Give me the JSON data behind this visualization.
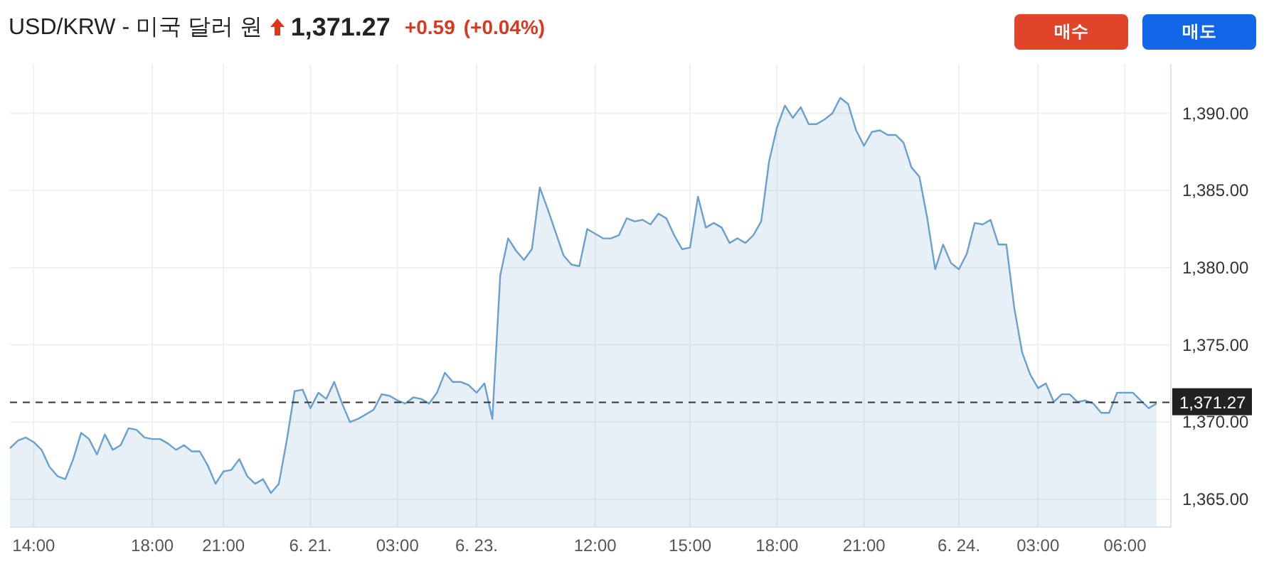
{
  "chart_data": {
    "type": "area",
    "title": "USD/KRW - 미국 달러 원",
    "annotations": [
      "1,371.27",
      "+0.59",
      "(+0.04%)",
      "매수",
      "매도"
    ],
    "categories": [
      null,
      null,
      null,
      "14:00",
      null,
      null,
      null,
      null,
      null,
      null,
      null,
      null,
      null,
      null,
      null,
      null,
      null,
      null,
      "18:00",
      null,
      null,
      null,
      null,
      null,
      null,
      null,
      null,
      "21:00",
      null,
      null,
      null,
      null,
      null,
      null,
      null,
      null,
      null,
      null,
      "6. 21.",
      null,
      null,
      null,
      null,
      null,
      null,
      null,
      null,
      null,
      null,
      "03:00",
      null,
      null,
      null,
      null,
      null,
      null,
      null,
      null,
      null,
      "6. 23.",
      null,
      null,
      null,
      null,
      null,
      null,
      null,
      null,
      null,
      null,
      null,
      null,
      null,
      null,
      "12:00",
      null,
      null,
      null,
      null,
      null,
      null,
      null,
      null,
      null,
      null,
      null,
      "15:00",
      null,
      null,
      null,
      null,
      null,
      null,
      null,
      null,
      null,
      null,
      "18:00",
      null,
      null,
      null,
      null,
      null,
      null,
      null,
      null,
      null,
      null,
      "21:00",
      null,
      null,
      null,
      null,
      null,
      null,
      null,
      null,
      null,
      null,
      null,
      "6. 24.",
      null,
      null,
      null,
      null,
      null,
      null,
      null,
      null,
      null,
      "03:00",
      null,
      null,
      null,
      null,
      null,
      null,
      null,
      null,
      null,
      null,
      "06:00",
      null,
      null,
      null,
      null
    ],
    "series": [
      {
        "color": "#6a9fd0",
        "values": [
          1368.3,
          1368.8,
          1369.0,
          1368.7,
          1368.2,
          1367.1,
          1366.5,
          1366.3,
          1367.6,
          1369.3,
          1368.9,
          1367.9,
          1369.2,
          1368.2,
          1368.5,
          1369.6,
          1369.5,
          1369.0,
          1368.9,
          1368.9,
          1368.6,
          1368.2,
          1368.5,
          1368.1,
          1368.1,
          1367.2,
          1366.0,
          1366.8,
          1366.9,
          1367.6,
          1366.5,
          1366.0,
          1366.3,
          1365.4,
          1366.0,
          1368.8,
          1372.0,
          1372.1,
          1370.9,
          1371.9,
          1371.5,
          1372.6,
          1371.2,
          1370.0,
          1370.2,
          1370.5,
          1370.8,
          1371.8,
          1371.7,
          1371.4,
          1371.2,
          1371.6,
          1371.5,
          1371.2,
          1371.9,
          1373.2,
          1372.6,
          1372.6,
          1372.4,
          1371.9,
          1372.5,
          1370.2,
          1379.5,
          1381.9,
          1381.1,
          1380.5,
          1381.2,
          1385.2,
          1383.8,
          1382.3,
          1380.8,
          1380.2,
          1380.1,
          1382.5,
          1382.2,
          1381.9,
          1381.9,
          1382.1,
          1383.2,
          1383.0,
          1383.1,
          1382.8,
          1383.5,
          1383.2,
          1382.1,
          1381.2,
          1381.3,
          1384.6,
          1382.6,
          1382.9,
          1382.6,
          1381.6,
          1381.9,
          1381.6,
          1382.1,
          1383.0,
          1386.9,
          1389.1,
          1390.5,
          1389.7,
          1390.4,
          1389.3,
          1389.3,
          1389.6,
          1390.0,
          1391.0,
          1390.6,
          1388.9,
          1387.9,
          1388.8,
          1388.9,
          1388.6,
          1388.6,
          1388.1,
          1386.5,
          1385.9,
          1383.2,
          1379.9,
          1381.5,
          1380.3,
          1379.9,
          1380.9,
          1382.9,
          1382.8,
          1383.1,
          1381.5,
          1381.5,
          1377.4,
          1374.5,
          1373.1,
          1372.2,
          1372.5,
          1371.3,
          1371.8,
          1371.8,
          1371.3,
          1371.4,
          1371.2,
          1370.6,
          1370.6,
          1371.9,
          1371.9,
          1371.9,
          1371.4,
          1370.9,
          1371.2
        ]
      }
    ],
    "ylim": [
      1363.2,
      1393.2
    ],
    "yticks": [
      {
        "value": 1365,
        "label": "1,365.00"
      },
      {
        "value": 1370,
        "label": "1,370.00"
      },
      {
        "value": 1375,
        "label": "1,375.00"
      },
      {
        "value": 1380,
        "label": "1,380.00"
      },
      {
        "value": 1385,
        "label": "1,385.00"
      },
      {
        "value": 1390,
        "label": "1,390.00"
      }
    ],
    "ref_lines": [
      {
        "axis": "y",
        "value": 1371.27,
        "label": "1,371.27",
        "color": "#333333",
        "line_style": "dashed"
      }
    ],
    "grid": true
  }
}
